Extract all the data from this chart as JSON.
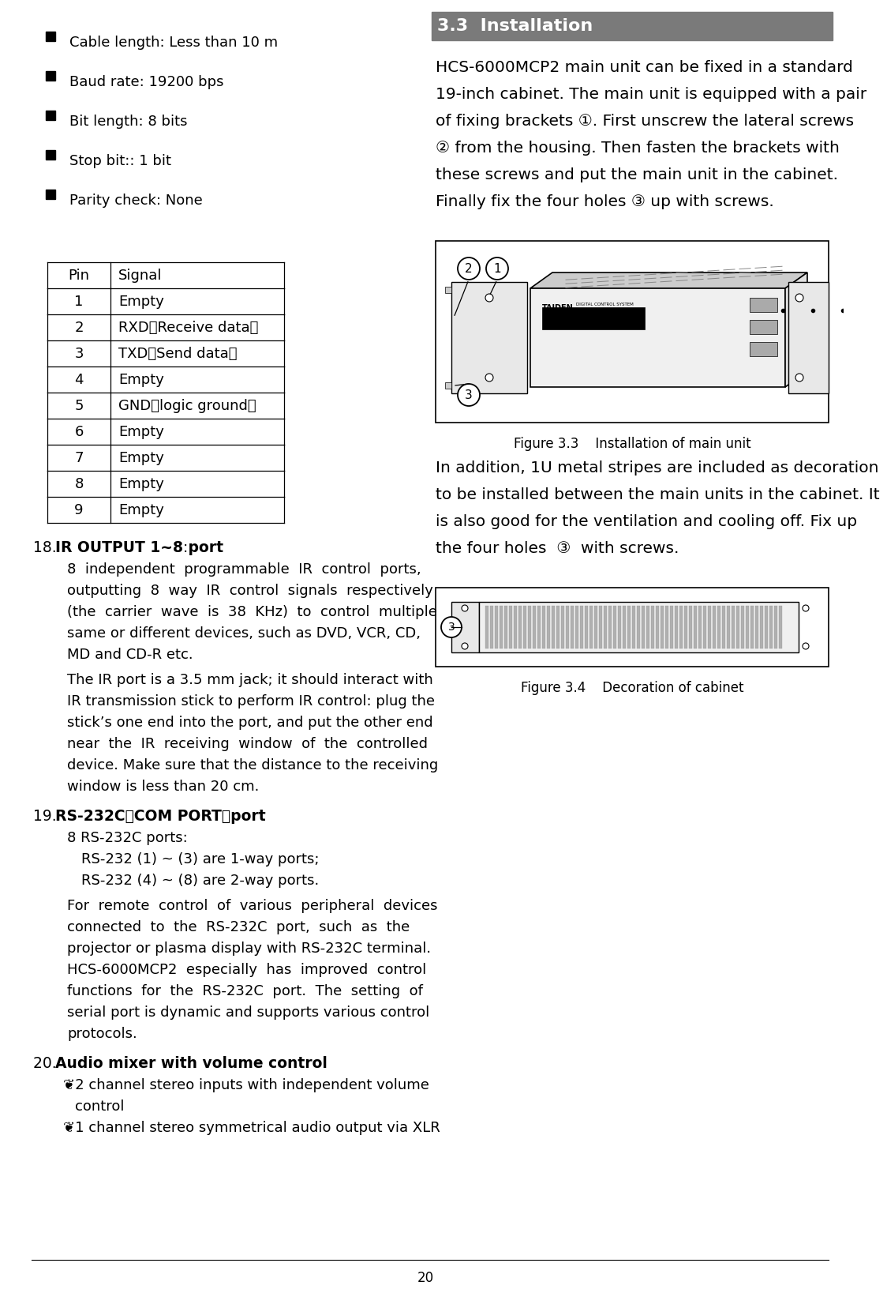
{
  "bg_color": "#ffffff",
  "page_number": "20",
  "bullet_items": [
    "Cable length: Less than 10 m",
    "Baud rate: 19200 bps",
    "Bit length: 8 bits",
    "Stop bit:: 1 bit",
    "Parity check: None"
  ],
  "table_headers": [
    "Pin",
    "Signal"
  ],
  "table_rows": [
    [
      "1",
      "Empty"
    ],
    [
      "2",
      "RXD（Receive data）"
    ],
    [
      "3",
      "TXD（Send data）"
    ],
    [
      "4",
      "Empty"
    ],
    [
      "5",
      "GND（logic ground）"
    ],
    [
      "6",
      "Empty"
    ],
    [
      "7",
      "Empty"
    ],
    [
      "8",
      "Empty"
    ],
    [
      "9",
      "Empty"
    ]
  ],
  "section_title": "3.3  Installation",
  "section_title_bg": "#7a7a7a",
  "section_title_color": "#ffffff",
  "fig33_caption": "Figure 3.3    Installation of main unit",
  "fig34_caption": "Figure 3.4    Decoration of cabinet",
  "right_p1_lines": [
    "HCS-6000MCP2 main unit can be fixed in a standard",
    "19-inch cabinet. The main unit is equipped with a pair",
    "of fixing brackets ①. First unscrew the lateral screws",
    "② from the housing. Then fasten the brackets with",
    "these screws and put the main unit in the cabinet.",
    "Finally fix the four holes ③ up with screws."
  ],
  "right_p2_lines": [
    "In addition, 1U metal stripes are included as decoration",
    "to be installed between the main units in the cabinet. It",
    "is also good for the ventilation and cooling off. Fix up",
    "the four holes  ③  with screws."
  ],
  "item18_text1_lines": [
    "8  independent  programmable  IR  control  ports,",
    "outputting  8  way  IR  control  signals  respectively",
    "(the  carrier  wave  is  38  KHz)  to  control  multiple",
    "same or different devices, such as DVD, VCR, CD,",
    "MD and CD-R etc."
  ],
  "item18_text2_lines": [
    "The IR port is a 3.5 mm jack; it should interact with",
    "IR transmission stick to perform IR control: plug the",
    "stick’s one end into the port, and put the other end",
    "near  the  IR  receiving  window  of  the  controlled",
    "device. Make sure that the distance to the receiving",
    "window is less than 20 cm."
  ],
  "item19_text_lines": [
    "For  remote  control  of  various  peripheral  devices",
    "connected  to  the  RS-232C  port,  such  as  the",
    "projector or plasma display with RS-232C terminal.",
    "HCS-6000MCP2  especially  has  improved  control",
    "functions  for  the  RS-232C  port.  The  setting  of",
    "serial port is dynamic and supports various control",
    "protocols."
  ]
}
